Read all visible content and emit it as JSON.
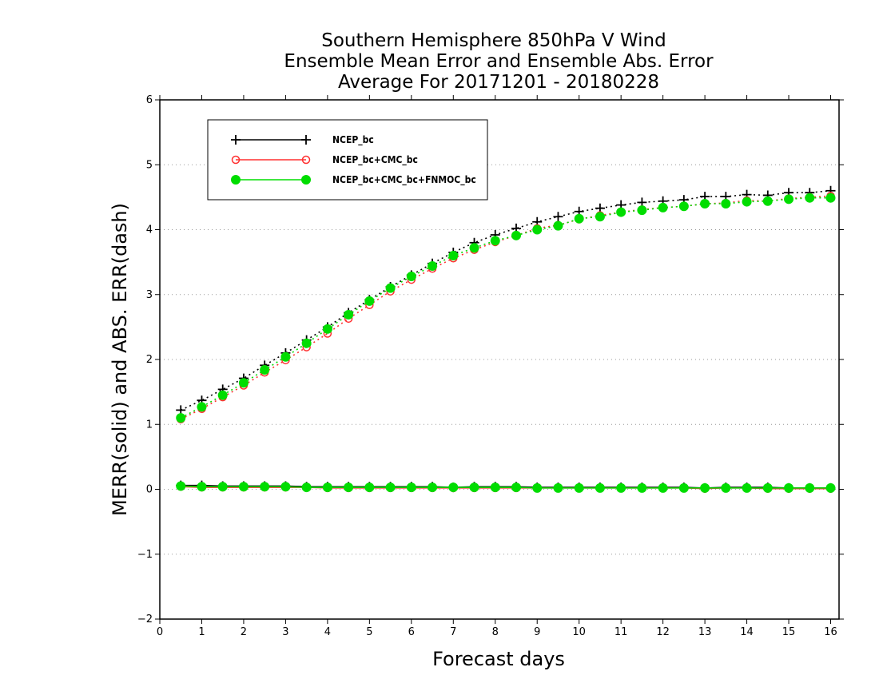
{
  "chart_data": {
    "type": "line",
    "title_lines": [
      "Southern Hemisphere 850hPa V Wind",
      "Ensemble Mean Error and Ensemble Abs. Error",
      "Average For 20171201 - 20180228"
    ],
    "xlabel": "Forecast days",
    "ylabel": "MERR(solid) and ABS. ERR(dash)",
    "xlim": [
      0,
      16.2
    ],
    "ylim": [
      -2,
      6
    ],
    "xticks": [
      0,
      1,
      2,
      3,
      4,
      5,
      6,
      7,
      8,
      9,
      10,
      11,
      12,
      13,
      14,
      15,
      16
    ],
    "yticks": [
      -2,
      -1,
      0,
      1,
      2,
      3,
      4,
      5,
      6
    ],
    "ytick_labels": [
      "−2",
      "−1",
      "0",
      "1",
      "2",
      "3",
      "4",
      "5",
      "6"
    ],
    "grid": "horizontal dotted",
    "legend_position": "top-left",
    "x": [
      0.5,
      1.0,
      1.5,
      2.0,
      2.5,
      3.0,
      3.5,
      4.0,
      4.5,
      5.0,
      5.5,
      6.0,
      6.5,
      7.0,
      7.5,
      8.0,
      8.5,
      9.0,
      9.5,
      10.0,
      10.5,
      11.0,
      11.5,
      12.0,
      12.5,
      13.0,
      13.5,
      14.0,
      14.5,
      15.0,
      15.5,
      16.0
    ],
    "series": [
      {
        "name": "NCEP_bc",
        "color": "#000000",
        "marker": "plus",
        "merr": [
          0.06,
          0.06,
          0.05,
          0.05,
          0.05,
          0.05,
          0.04,
          0.04,
          0.04,
          0.04,
          0.04,
          0.04,
          0.04,
          0.03,
          0.04,
          0.04,
          0.04,
          0.03,
          0.03,
          0.03,
          0.03,
          0.03,
          0.03,
          0.03,
          0.03,
          0.02,
          0.03,
          0.03,
          0.03,
          0.02,
          0.02,
          0.02
        ],
        "abs_err": [
          1.22,
          1.37,
          1.54,
          1.71,
          1.91,
          2.1,
          2.3,
          2.5,
          2.72,
          2.92,
          3.12,
          3.3,
          3.48,
          3.65,
          3.8,
          3.92,
          4.02,
          4.12,
          4.2,
          4.28,
          4.33,
          4.38,
          4.42,
          4.44,
          4.46,
          4.51,
          4.51,
          4.54,
          4.53,
          4.57,
          4.57,
          4.6
        ]
      },
      {
        "name": "NCEP_bc+CMC_bc",
        "color": "#ff3030",
        "marker": "open-circle",
        "merr": [
          0.04,
          0.03,
          0.03,
          0.03,
          0.03,
          0.03,
          0.03,
          0.02,
          0.02,
          0.02,
          0.02,
          0.02,
          0.02,
          0.02,
          0.02,
          0.02,
          0.02,
          0.02,
          0.02,
          0.02,
          0.02,
          0.02,
          0.02,
          0.02,
          0.02,
          0.01,
          0.02,
          0.02,
          0.01,
          0.01,
          0.01,
          0.01
        ],
        "abs_err": [
          1.08,
          1.24,
          1.42,
          1.6,
          1.8,
          1.99,
          2.19,
          2.4,
          2.63,
          2.84,
          3.05,
          3.23,
          3.4,
          3.56,
          3.69,
          3.81,
          3.91,
          4.02,
          4.07,
          4.16,
          4.22,
          4.27,
          4.31,
          4.34,
          4.36,
          4.4,
          4.41,
          4.45,
          4.44,
          4.48,
          4.5,
          4.52
        ]
      },
      {
        "name": "NCEP_bc+CMC_bc+FNMOC_bc",
        "color": "#00dd00",
        "marker": "filled-circle",
        "merr": [
          0.05,
          0.04,
          0.04,
          0.04,
          0.04,
          0.04,
          0.03,
          0.03,
          0.03,
          0.03,
          0.03,
          0.03,
          0.03,
          0.03,
          0.03,
          0.03,
          0.03,
          0.02,
          0.02,
          0.02,
          0.02,
          0.02,
          0.02,
          0.02,
          0.02,
          0.02,
          0.02,
          0.02,
          0.02,
          0.02,
          0.02,
          0.02
        ],
        "abs_err": [
          1.1,
          1.27,
          1.45,
          1.64,
          1.84,
          2.04,
          2.25,
          2.47,
          2.69,
          2.9,
          3.1,
          3.28,
          3.44,
          3.6,
          3.72,
          3.83,
          3.91,
          4.0,
          4.06,
          4.17,
          4.2,
          4.27,
          4.3,
          4.34,
          4.36,
          4.4,
          4.4,
          4.43,
          4.44,
          4.47,
          4.49,
          4.49
        ]
      }
    ]
  }
}
